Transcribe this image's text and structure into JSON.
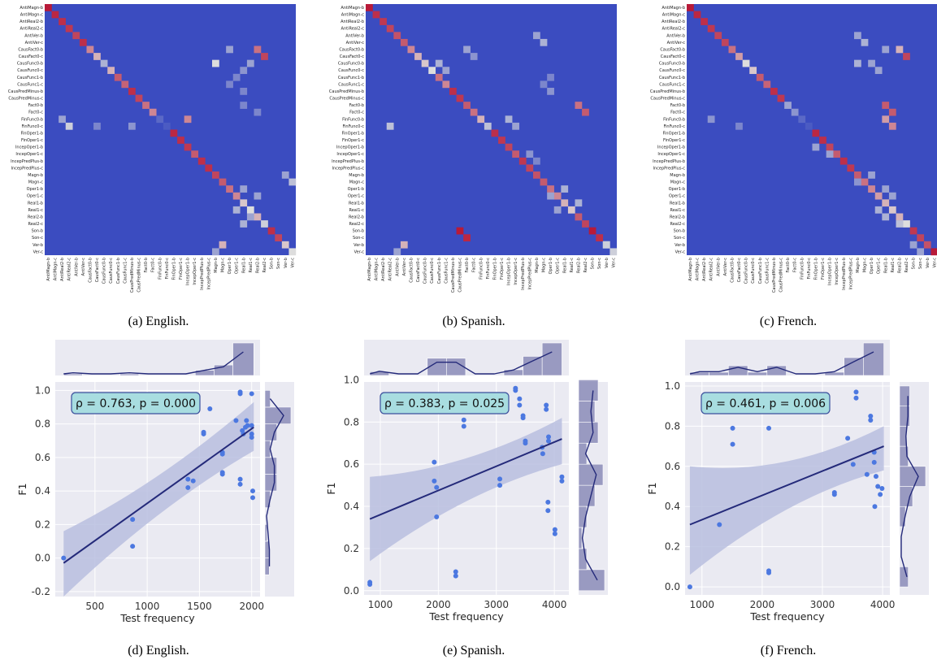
{
  "captions": [
    "(a) English.",
    "(b) Spanish.",
    "(c) French.",
    "(d) English.",
    "(e) Spanish.",
    "(f) French."
  ],
  "colors": {
    "cold": "#3b4cc0",
    "neutral": "#dddddd",
    "hot": "#b40426",
    "scatter_point": "#4c78e0",
    "fit_line": "#242a7a",
    "band": "#b8bedf",
    "panel_bg": "#eaeaf2",
    "hist_bar": "#7d7fb0",
    "annotation_bg": "#a8dde0"
  },
  "chart_data": [
    {
      "type": "heatmap",
      "name": "English",
      "labels": [
        "AntiMagn-b",
        "AntiMagn-c",
        "AntiReal2-b",
        "AntiReal2-c",
        "AntiVer-b",
        "AntiVer-c",
        "CausFact0-b",
        "CausFact0-c",
        "CausFunc0-b",
        "CausFunc0-c",
        "CausFunc1-b",
        "CausFunc1-c",
        "CausPredMinus-b",
        "CausPredMinus-c",
        "Fact0-b",
        "Fact0-c",
        "FinFunc0-b",
        "FinFunc0-c",
        "FinOper1-b",
        "FinOper1-c",
        "IncepOper1-b",
        "IncepOper1-c",
        "IncepPredPlus-b",
        "IncepPredPlus-c",
        "Magn-b",
        "Magn-c",
        "Oper1-b",
        "Oper1-c",
        "Real1-b",
        "Real1-c",
        "Real2-b",
        "Real2-c",
        "Son-b",
        "Son-c",
        "Ver-b",
        "Ver-c"
      ],
      "diagonal": [
        0.95,
        0.92,
        0.9,
        0.88,
        0.85,
        0.9,
        0.7,
        0.6,
        0.35,
        0.6,
        0.8,
        0.78,
        0.9,
        0.85,
        0.75,
        0.7,
        0.1,
        0.05,
        0.92,
        0.9,
        0.88,
        0.8,
        0.9,
        0.9,
        0.85,
        0.8,
        0.75,
        0.7,
        0.55,
        0.5,
        0.6,
        0.45,
        0.9,
        0.85,
        0.55,
        0.5
      ],
      "off_diagonal": [
        [
          6,
          26,
          0.3
        ],
        [
          6,
          30,
          0.75
        ],
        [
          7,
          31,
          0.85
        ],
        [
          8,
          24,
          0.5
        ],
        [
          8,
          29,
          0.3
        ],
        [
          9,
          28,
          0.25
        ],
        [
          16,
          2,
          0.3
        ],
        [
          17,
          3,
          0.45
        ],
        [
          17,
          7,
          0.2
        ],
        [
          17,
          12,
          0.25
        ],
        [
          16,
          20,
          0.7
        ],
        [
          24,
          34,
          0.3
        ],
        [
          25,
          35,
          0.4
        ],
        [
          29,
          27,
          0.35
        ],
        [
          30,
          29,
          0.3
        ],
        [
          31,
          28,
          0.35
        ],
        [
          12,
          28,
          0.2
        ],
        [
          34,
          25,
          0.6
        ],
        [
          35,
          24,
          0.3
        ],
        [
          26,
          28,
          0.3
        ],
        [
          27,
          30,
          0.3
        ],
        [
          14,
          28,
          0.2
        ],
        [
          15,
          30,
          0.2
        ],
        [
          10,
          27,
          0.2
        ],
        [
          11,
          26,
          0.2
        ]
      ]
    },
    {
      "type": "heatmap",
      "name": "Spanish",
      "labels": [
        "AntiMagn-b",
        "AntiMagn-c",
        "AntiReal2-b",
        "AntiReal2-c",
        "AntiVer-b",
        "AntiVer-c",
        "CausFact0-b",
        "CausFact0-c",
        "CausFunc0-b",
        "CausFunc0-c",
        "CausFunc1-b",
        "CausFunc1-c",
        "CausPredMinus-b",
        "CausPredMinus-c",
        "Fact0-b",
        "Fact0-c",
        "FinFunc0-b",
        "FinFunc0-c",
        "FinOper1-b",
        "FinOper1-c",
        "IncepOper1-b",
        "IncepOper1-c",
        "IncepPredPlus-b",
        "IncepPredPlus-c",
        "Magn-b",
        "Magn-c",
        "Oper1-b",
        "Oper1-c",
        "Real1-b",
        "Real1-c",
        "Real2-b",
        "Real2-c",
        "Son-b",
        "Son-c",
        "Ver-b",
        "Ver-c"
      ],
      "diagonal": [
        0.95,
        0.9,
        0.88,
        0.85,
        0.82,
        0.8,
        0.7,
        0.6,
        0.55,
        0.5,
        0.75,
        0.7,
        0.9,
        0.88,
        0.8,
        0.75,
        0.6,
        0.4,
        0.9,
        0.88,
        0.85,
        0.8,
        0.88,
        0.85,
        0.82,
        0.8,
        0.75,
        0.7,
        0.6,
        0.55,
        0.8,
        0.85,
        0.95,
        0.9,
        0.5,
        0.45
      ],
      "off_diagonal": [
        [
          32,
          13,
          0.95
        ],
        [
          33,
          14,
          0.92
        ],
        [
          4,
          24,
          0.3
        ],
        [
          5,
          25,
          0.35
        ],
        [
          6,
          14,
          0.3
        ],
        [
          7,
          15,
          0.25
        ],
        [
          8,
          10,
          0.35
        ],
        [
          9,
          11,
          0.3
        ],
        [
          14,
          30,
          0.75
        ],
        [
          15,
          31,
          0.8
        ],
        [
          16,
          20,
          0.35
        ],
        [
          17,
          3,
          0.4
        ],
        [
          17,
          21,
          0.3
        ],
        [
          22,
          24,
          0.2
        ],
        [
          26,
          28,
          0.35
        ],
        [
          27,
          26,
          0.3
        ],
        [
          28,
          30,
          0.35
        ],
        [
          29,
          27,
          0.3
        ],
        [
          34,
          5,
          0.6
        ],
        [
          35,
          4,
          0.3
        ],
        [
          34,
          34,
          0.45
        ],
        [
          10,
          26,
          0.2
        ],
        [
          11,
          25,
          0.2
        ],
        [
          12,
          26,
          0.25
        ],
        [
          21,
          23,
          0.25
        ]
      ]
    },
    {
      "type": "heatmap",
      "name": "French",
      "labels": [
        "AntiMagn-b",
        "AntiMagn-c",
        "AntiReal2-b",
        "AntiReal2-c",
        "AntiVer-b",
        "AntiVer-c",
        "CausFact0-b",
        "CausFact0-c",
        "CausFunc0-b",
        "CausFunc0-c",
        "CausFunc1-b",
        "CausFunc1-c",
        "CausPredMinus-b",
        "CausPredMinus-c",
        "Fact0-b",
        "Fact0-c",
        "FinFunc0-b",
        "FinFunc0-c",
        "FinOper1-b",
        "FinOper1-c",
        "IncepOper1-b",
        "IncepOper1-c",
        "IncepPredPlus-b",
        "IncepPredPlus-c",
        "Magn-b",
        "Magn-c",
        "Oper1-b",
        "Oper1-c",
        "Real1-b",
        "Real1-c",
        "Real2-b",
        "Real2-c",
        "Son-b",
        "Son-c",
        "Ver-b",
        "Ver-c"
      ],
      "diagonal": [
        0.95,
        0.92,
        0.9,
        0.88,
        0.85,
        0.85,
        0.75,
        0.65,
        0.5,
        0.55,
        0.8,
        0.78,
        0.9,
        0.88,
        0.3,
        0.25,
        0.1,
        0.05,
        0.92,
        0.9,
        0.85,
        0.8,
        0.9,
        0.88,
        0.8,
        0.75,
        0.7,
        0.65,
        0.6,
        0.55,
        0.6,
        0.5,
        0.88,
        0.85,
        0.82,
        0.95
      ],
      "off_diagonal": [
        [
          4,
          24,
          0.3
        ],
        [
          5,
          25,
          0.35
        ],
        [
          6,
          28,
          0.3
        ],
        [
          6,
          30,
          0.6
        ],
        [
          7,
          31,
          0.85
        ],
        [
          8,
          24,
          0.35
        ],
        [
          8,
          26,
          0.3
        ],
        [
          9,
          27,
          0.3
        ],
        [
          14,
          28,
          0.8
        ],
        [
          15,
          29,
          0.8
        ],
        [
          16,
          28,
          0.65
        ],
        [
          17,
          29,
          0.7
        ],
        [
          16,
          3,
          0.25
        ],
        [
          17,
          7,
          0.2
        ],
        [
          20,
          18,
          0.3
        ],
        [
          21,
          20,
          0.3
        ],
        [
          24,
          26,
          0.3
        ],
        [
          25,
          24,
          0.25
        ],
        [
          26,
          28,
          0.3
        ],
        [
          27,
          29,
          0.3
        ],
        [
          29,
          27,
          0.35
        ],
        [
          30,
          28,
          0.35
        ],
        [
          31,
          30,
          0.4
        ],
        [
          34,
          32,
          0.3
        ],
        [
          35,
          33,
          0.3
        ]
      ]
    },
    {
      "type": "scatter",
      "name": "English",
      "xlabel": "Test frequency",
      "ylabel": "F1",
      "xlim": [
        120,
        2080
      ],
      "ylim": [
        -0.23,
        1.05
      ],
      "xticks": [
        500,
        1000,
        1500,
        2000
      ],
      "yticks": [
        -0.2,
        0.0,
        0.2,
        0.4,
        0.6,
        0.8,
        1.0
      ],
      "annotation": "ρ = 0.763, p = 0.000",
      "fit": {
        "x": [
          200,
          2020
        ],
        "y": [
          -0.03,
          0.78
        ],
        "band_lower": [
          -0.23,
          0.64
        ],
        "band_upper": [
          0.16,
          0.93
        ]
      },
      "points": [
        [
          200,
          0.0
        ],
        [
          860,
          0.23
        ],
        [
          860,
          0.07
        ],
        [
          1390,
          0.47
        ],
        [
          1390,
          0.42
        ],
        [
          1440,
          0.46
        ],
        [
          1540,
          0.75
        ],
        [
          1540,
          0.74
        ],
        [
          1600,
          0.89
        ],
        [
          1720,
          0.62
        ],
        [
          1720,
          0.63
        ],
        [
          1720,
          0.51
        ],
        [
          1720,
          0.5
        ],
        [
          1850,
          0.82
        ],
        [
          1890,
          0.99
        ],
        [
          1890,
          0.98
        ],
        [
          1890,
          0.47
        ],
        [
          1890,
          0.44
        ],
        [
          1910,
          0.76
        ],
        [
          1920,
          0.74
        ],
        [
          1940,
          0.78
        ],
        [
          1950,
          0.82
        ],
        [
          1960,
          0.79
        ],
        [
          2000,
          0.98
        ],
        [
          2000,
          0.79
        ],
        [
          2000,
          0.74
        ],
        [
          2000,
          0.72
        ],
        [
          2010,
          0.4
        ],
        [
          2010,
          0.36
        ]
      ],
      "x_hist": {
        "bin_edges": [
          200,
          380,
          560,
          740,
          920,
          1100,
          1280,
          1460,
          1640,
          1820,
          2020
        ],
        "density": [
          0.03,
          0.0,
          0.0,
          0.03,
          0.0,
          0.0,
          0.0,
          0.1,
          0.2,
          0.62
        ]
      },
      "y_hist": {
        "bin_edges": [
          -0.1,
          0.0,
          0.1,
          0.2,
          0.3,
          0.4,
          0.5,
          0.6,
          0.7,
          0.8,
          0.9,
          1.0
        ],
        "density": [
          0.08,
          0.08,
          0.04,
          0.0,
          0.1,
          0.22,
          0.22,
          0.1,
          0.22,
          0.48,
          0.1
        ]
      }
    },
    {
      "type": "scatter",
      "name": "Spanish",
      "xlabel": "Test frequency",
      "ylabel": "F1",
      "xlim": [
        720,
        4250
      ],
      "ylim": [
        -0.02,
        0.99
      ],
      "xticks": [
        1000,
        2000,
        3000,
        4000
      ],
      "yticks": [
        0.0,
        0.2,
        0.4,
        0.6,
        0.8,
        1.0
      ],
      "annotation": "ρ = 0.383, p = 0.025",
      "fit": {
        "x": [
          820,
          4130
        ],
        "y": [
          0.34,
          0.72
        ],
        "band_lower": [
          0.14,
          0.6
        ],
        "band_upper": [
          0.54,
          0.82
        ]
      },
      "points": [
        [
          820,
          0.04
        ],
        [
          820,
          0.03
        ],
        [
          1930,
          0.61
        ],
        [
          1930,
          0.52
        ],
        [
          1970,
          0.35
        ],
        [
          1970,
          0.49
        ],
        [
          2300,
          0.09
        ],
        [
          2300,
          0.07
        ],
        [
          2440,
          0.81
        ],
        [
          2440,
          0.78
        ],
        [
          3060,
          0.53
        ],
        [
          3060,
          0.5
        ],
        [
          3330,
          0.96
        ],
        [
          3330,
          0.95
        ],
        [
          3400,
          0.91
        ],
        [
          3400,
          0.88
        ],
        [
          3460,
          0.83
        ],
        [
          3460,
          0.82
        ],
        [
          3500,
          0.71
        ],
        [
          3500,
          0.7
        ],
        [
          3790,
          0.68
        ],
        [
          3800,
          0.65
        ],
        [
          3860,
          0.88
        ],
        [
          3860,
          0.86
        ],
        [
          3900,
          0.73
        ],
        [
          3900,
          0.71
        ],
        [
          3890,
          0.42
        ],
        [
          3890,
          0.38
        ],
        [
          4010,
          0.29
        ],
        [
          4010,
          0.27
        ],
        [
          4130,
          0.54
        ],
        [
          4130,
          0.52
        ]
      ],
      "x_hist": {
        "bin_edges": [
          820,
          1150,
          1480,
          1810,
          2140,
          2470,
          2800,
          3130,
          3460,
          3790,
          4130
        ],
        "density": [
          0.04,
          0.0,
          0.0,
          0.18,
          0.18,
          0.0,
          0.0,
          0.06,
          0.2,
          0.34
        ]
      },
      "y_hist": {
        "bin_edges": [
          0.0,
          0.1,
          0.2,
          0.3,
          0.4,
          0.5,
          0.6,
          0.7,
          0.8,
          0.9,
          1.0
        ],
        "density": [
          0.16,
          0.05,
          0.02,
          0.05,
          0.1,
          0.15,
          0.05,
          0.12,
          0.1,
          0.12,
          0.12
        ]
      }
    },
    {
      "type": "scatter",
      "name": "French",
      "xlabel": "Test frequency",
      "ylabel": "F1",
      "xlim": [
        720,
        4120
      ],
      "ylim": [
        -0.04,
        1.02
      ],
      "xticks": [
        1000,
        2000,
        3000,
        4000
      ],
      "yticks": [
        0.0,
        0.2,
        0.4,
        0.6,
        0.8,
        1.0
      ],
      "annotation": "ρ = 0.461, p = 0.006",
      "fit": {
        "x": [
          800,
          4020
        ],
        "y": [
          0.31,
          0.7
        ],
        "band_lower": [
          0.06,
          0.58
        ],
        "band_upper": [
          0.6,
          0.8
        ]
      },
      "points": [
        [
          800,
          0.0
        ],
        [
          1290,
          0.31
        ],
        [
          1510,
          0.79
        ],
        [
          1510,
          0.71
        ],
        [
          2110,
          0.79
        ],
        [
          2110,
          0.08
        ],
        [
          2110,
          0.07
        ],
        [
          3200,
          0.47
        ],
        [
          3200,
          0.46
        ],
        [
          3420,
          0.74
        ],
        [
          3510,
          0.61
        ],
        [
          3560,
          0.97
        ],
        [
          3560,
          0.94
        ],
        [
          3740,
          0.56
        ],
        [
          3800,
          0.85
        ],
        [
          3800,
          0.83
        ],
        [
          3860,
          0.67
        ],
        [
          3860,
          0.62
        ],
        [
          3870,
          0.4
        ],
        [
          3890,
          0.55
        ],
        [
          3920,
          0.5
        ],
        [
          3960,
          0.46
        ],
        [
          3990,
          0.49
        ]
      ],
      "x_hist": {
        "bin_edges": [
          800,
          1120,
          1440,
          1760,
          2080,
          2400,
          2720,
          3040,
          3360,
          3680,
          4020
        ],
        "density": [
          0.04,
          0.04,
          0.12,
          0.04,
          0.12,
          0.0,
          0.0,
          0.04,
          0.22,
          0.4
        ]
      },
      "y_hist": {
        "bin_edges": [
          0.0,
          0.1,
          0.2,
          0.3,
          0.4,
          0.5,
          0.6,
          0.7,
          0.8,
          0.9,
          1.0
        ],
        "density": [
          0.12,
          0.0,
          0.0,
          0.08,
          0.18,
          0.36,
          0.12,
          0.1,
          0.14,
          0.14,
          0.16
        ]
      }
    }
  ]
}
